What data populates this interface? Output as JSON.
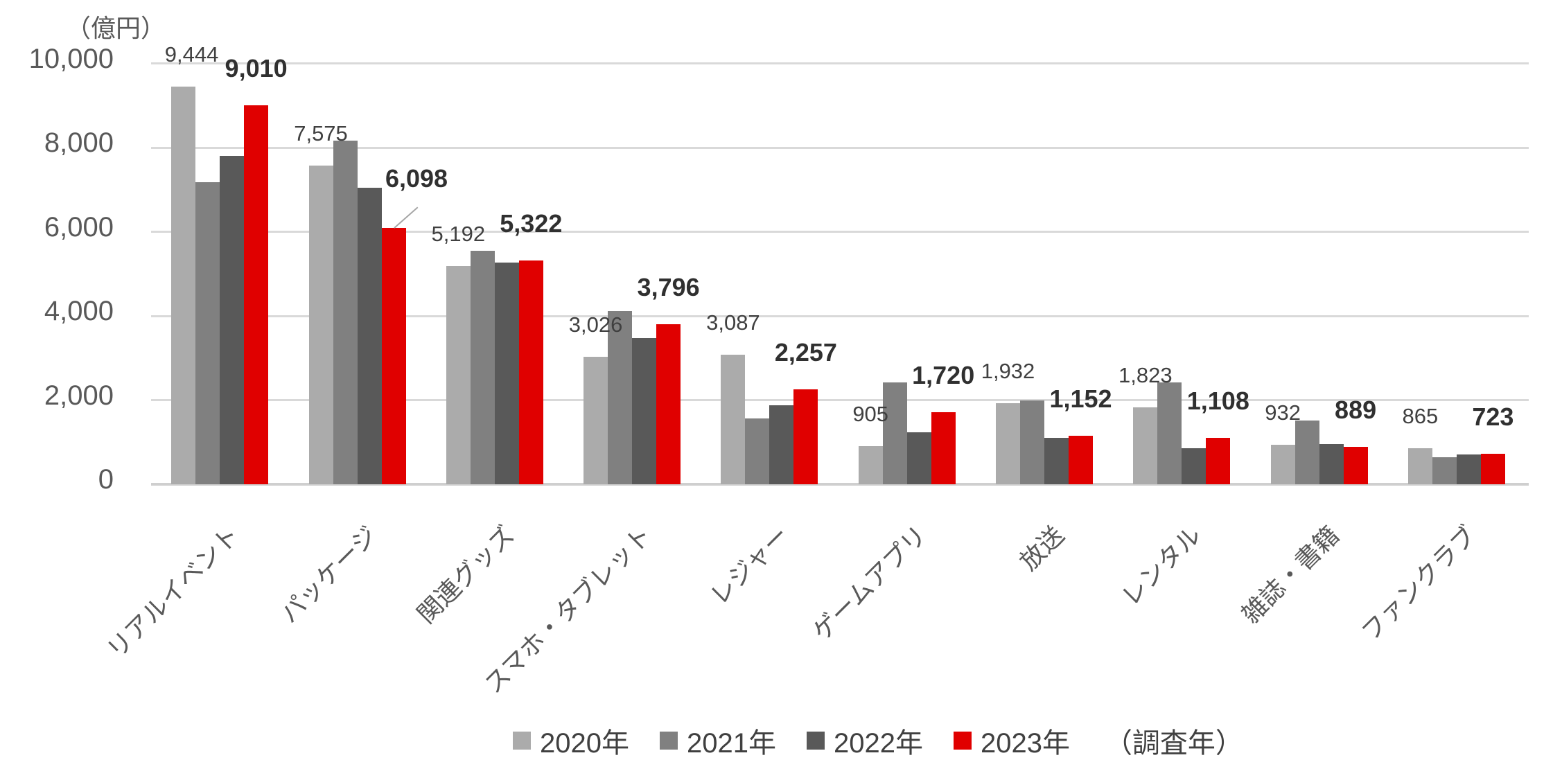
{
  "chart_data": {
    "type": "bar",
    "title": "",
    "unit_label": "（億円）",
    "categories": [
      "リアルイベント",
      "パッケージ",
      "関連グッズ",
      "スマホ・タブレット",
      "レジャー",
      "ゲームアプリ",
      "放送",
      "レンタル",
      "雑誌・書籍",
      "ファンクラブ"
    ],
    "series": [
      {
        "name": "2020年",
        "color": "#ABABAB",
        "values": [
          9444,
          7575,
          5192,
          3026,
          3087,
          905,
          1932,
          1823,
          932,
          865
        ],
        "data_labels": [
          "9,444",
          "7,575",
          "5,192",
          "3,026",
          "3,087",
          "905",
          "1,932",
          "1,823",
          "932",
          "865"
        ],
        "label_style": "regular"
      },
      {
        "name": "2021年",
        "color": "#808080",
        "values": [
          7180,
          8170,
          5540,
          4110,
          1560,
          2420,
          2000,
          2420,
          1510,
          650
        ],
        "data_labels": null,
        "label_style": null
      },
      {
        "name": "2022年",
        "color": "#595959",
        "values": [
          7800,
          7050,
          5270,
          3470,
          1870,
          1230,
          1100,
          850,
          960,
          710
        ],
        "data_labels": null,
        "label_style": null
      },
      {
        "name": "2023年",
        "color": "#E00000",
        "values": [
          9010,
          6098,
          5322,
          3796,
          2257,
          1720,
          1152,
          1108,
          889,
          723
        ],
        "data_labels": [
          "9,010",
          "6,098",
          "5,322",
          "3,796",
          "2,257",
          "1,720",
          "1,152",
          "1,108",
          "889",
          "723"
        ],
        "label_style": "bold"
      }
    ],
    "y_axis": {
      "ticks": [
        "0",
        "2,000",
        "4,000",
        "6,000",
        "8,000",
        "10,000"
      ],
      "min": 0,
      "max": 10000,
      "tick_step": 2000
    },
    "legend": {
      "entries": [
        "2020年",
        "2021年",
        "2022年",
        "2023年"
      ],
      "note": "（調査年）",
      "position": "bottom"
    },
    "grid": "horizontal"
  }
}
